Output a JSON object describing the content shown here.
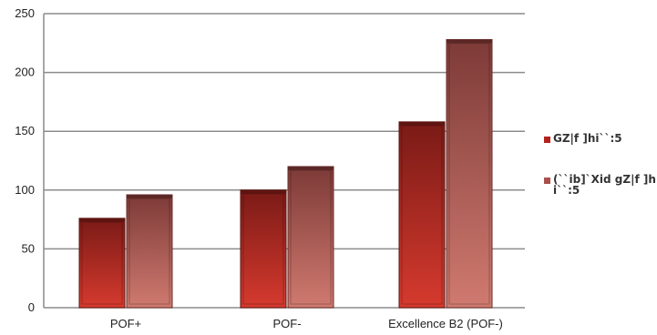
{
  "chart_data": {
    "type": "bar",
    "categories": [
      "POF+",
      "POF-",
      "Excellence B2 (POF-)"
    ],
    "series": [
      {
        "name": "GZ|f ]hi``:5",
        "values": [
          76,
          100,
          158
        ],
        "color": "#b3221c"
      },
      {
        "name": "(``ib]`Xid gZ|f ]hi``:5",
        "values": [
          96,
          120,
          228
        ],
        "color": "#a9504c"
      }
    ],
    "ylim": [
      0,
      250
    ],
    "yticks": [
      0,
      50,
      100,
      150,
      200,
      250
    ],
    "grid": true,
    "legend": "right",
    "title": "",
    "xlabel": "",
    "ylabel": ""
  }
}
